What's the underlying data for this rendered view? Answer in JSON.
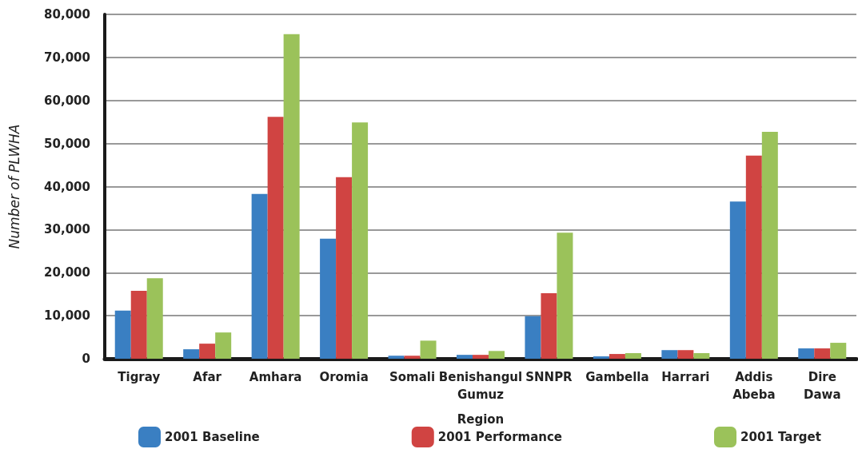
{
  "chart_data": {
    "type": "bar",
    "xlabel": "Region",
    "ylabel": "Number of PLWHA",
    "categories": [
      "Tigray",
      "Afar",
      "Amhara",
      "Oromia",
      "Somali",
      "Benishangul Gumuz",
      "SNNPR",
      "Gambella",
      "Harrari",
      "Addis Abeba",
      "Dire Dawa"
    ],
    "series": [
      {
        "name": "2001 Baseline",
        "color": "#3a7fc2",
        "values": [
          11200,
          2200,
          38300,
          27900,
          700,
          900,
          9900,
          550,
          2000,
          36500,
          2400
        ]
      },
      {
        "name": "2001 Performance",
        "color": "#d04442",
        "values": [
          15800,
          3500,
          56200,
          42200,
          700,
          900,
          15200,
          1100,
          2000,
          47200,
          2400
        ]
      },
      {
        "name": "2001 Target",
        "color": "#9bc25a",
        "values": [
          18700,
          6100,
          75400,
          54900,
          4200,
          1800,
          29300,
          1300,
          1300,
          52700,
          3700
        ]
      }
    ],
    "ylim": [
      0,
      80000
    ],
    "yticks": [
      {
        "value": 0,
        "label": "0"
      },
      {
        "value": 10000,
        "label": "10,000"
      },
      {
        "value": 20000,
        "label": "20,000"
      },
      {
        "value": 30000,
        "label": "30,000"
      },
      {
        "value": 40000,
        "label": "40,000"
      },
      {
        "value": 50000,
        "label": "50,000"
      },
      {
        "value": 60000,
        "label": "60,000"
      },
      {
        "value": 70000,
        "label": "70,000"
      },
      {
        "value": 80000,
        "label": "80,000"
      }
    ],
    "grid": "y",
    "legend": "bottom"
  }
}
